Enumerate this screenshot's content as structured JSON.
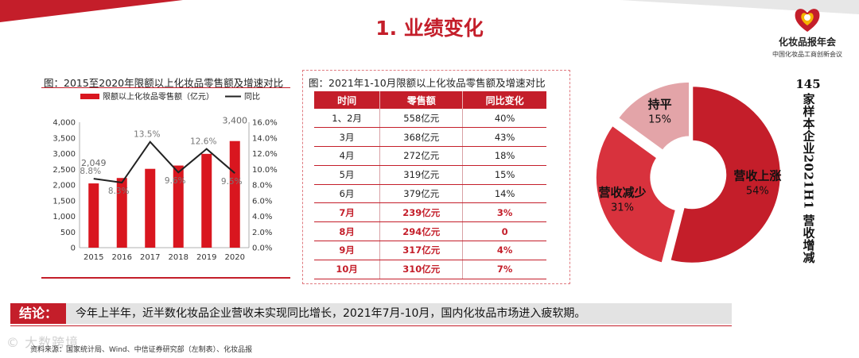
{
  "page": {
    "title": "1. 业绩变化",
    "logo_name": "化妆品报年会",
    "logo_sub": "中国化妆品工商创新会议",
    "watermark": "© 大数跨境"
  },
  "left_figure": {
    "title": "图：2015至2020年限额以上化妆品零售额及增速对比"
  },
  "right_figure": {
    "title": "图：2021年1-10月限额以上化妆品零售额及增速对比",
    "columns": [
      "时间",
      "零售额",
      "同比变化"
    ],
    "rows": [
      {
        "time": "1、2月",
        "sales": "558亿元",
        "yoy": "40%",
        "highlight": false
      },
      {
        "time": "3月",
        "sales": "368亿元",
        "yoy": "43%",
        "highlight": false
      },
      {
        "time": "4月",
        "sales": "272亿元",
        "yoy": "18%",
        "highlight": false
      },
      {
        "time": "5月",
        "sales": "319亿元",
        "yoy": "15%",
        "highlight": false
      },
      {
        "time": "6月",
        "sales": "379亿元",
        "yoy": "14%",
        "highlight": false
      },
      {
        "time": "7月",
        "sales": "239亿元",
        "yoy": "3%",
        "highlight": true
      },
      {
        "time": "8月",
        "sales": "294亿元",
        "yoy": "0",
        "highlight": true
      },
      {
        "time": "9月",
        "sales": "317亿元",
        "yoy": "4%",
        "highlight": true
      },
      {
        "time": "10月",
        "sales": "310亿元",
        "yoy": "7%",
        "highlight": true
      }
    ]
  },
  "donut_figure": {
    "count": "145",
    "title": "家样本企业2021H1 营收增减"
  },
  "conclusion": {
    "label": "结论：",
    "text": "今年上半年，近半数化妆品企业营收未实现同比增长，2021年7月-10月，国内化妆品市场进入疲软期。"
  },
  "source": "资料来源：国家统计局、Wind、中信证券研究部（左制表）、化妆品报",
  "colors": {
    "accent": "#c41e2a",
    "bar": "#d9161f",
    "line": "#222222",
    "donut_up": "#c41e2a",
    "donut_down": "#d8323d",
    "donut_flat": "#e3a4a8"
  },
  "chart_data": [
    {
      "type": "bar",
      "categories": [
        "2015",
        "2016",
        "2017",
        "2018",
        "2019",
        "2020"
      ],
      "series": [
        {
          "name": "限额以上化妆品零售额（亿元）",
          "type": "bar",
          "axis": "left",
          "values": [
            2049,
            2222,
            2514,
            2619,
            2992,
            3400
          ]
        },
        {
          "name": "同比",
          "type": "line",
          "axis": "right",
          "values": [
            8.8,
            8.3,
            13.5,
            9.6,
            12.6,
            9.5
          ]
        }
      ],
      "value_labels": {
        "2015": "2,049",
        "2020": "3,400"
      },
      "line_labels": [
        "8.8%",
        "8.3%",
        "13.5%",
        "9.6%",
        "12.6%",
        "9.5%"
      ],
      "y_ticks": [
        "0",
        "500",
        "1,000",
        "1,500",
        "2,000",
        "2,500",
        "3,000",
        "3,500",
        "4,000"
      ],
      "y2_ticks": [
        "0.0%",
        "2.0%",
        "4.0%",
        "6.0%",
        "8.0%",
        "10.0%",
        "12.0%",
        "14.0%",
        "16.0%"
      ],
      "ylim": [
        0,
        4000
      ],
      "y2lim": [
        0,
        16
      ],
      "legend": "top-left"
    },
    {
      "type": "pie",
      "donut": true,
      "slices": [
        {
          "label": "营收上涨",
          "value": 54,
          "display": "54%"
        },
        {
          "label": "营收减少",
          "value": 31,
          "display": "31%"
        },
        {
          "label": "持平",
          "value": 15,
          "display": "15%"
        }
      ]
    }
  ]
}
